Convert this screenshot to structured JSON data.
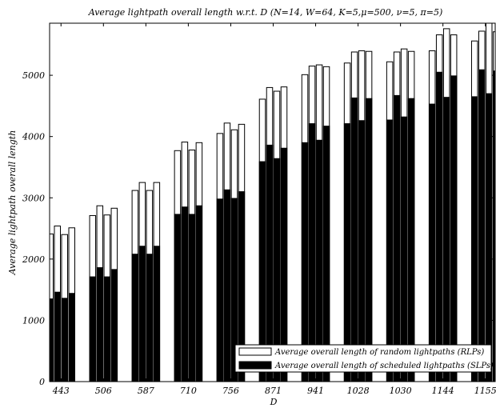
{
  "chart_data": {
    "type": "bar",
    "title": "Average lightpath overall length w.r.t. D (N=14, W=64, K=5,μ=500, ν=5, π=5)",
    "xlabel": "D",
    "ylabel": "Average lightpath overall length",
    "ylim": [
      0,
      5850
    ],
    "yticks": [
      0,
      1000,
      2000,
      3000,
      4000,
      5000
    ],
    "categories": [
      "443",
      "506",
      "587",
      "710",
      "756",
      "871",
      "941",
      "1028",
      "1030",
      "1144",
      "1155"
    ],
    "bars_per_group": 4,
    "grid": false,
    "legend_position": "bottom-right",
    "series": [
      {
        "name": "Average overall length of random lightpaths (RLPs)",
        "color": "#ffffff",
        "values": [
          [
            2410,
            2540,
            2400,
            2510
          ],
          [
            2710,
            2870,
            2720,
            2830
          ],
          [
            3120,
            3250,
            3120,
            3250
          ],
          [
            3770,
            3910,
            3780,
            3900
          ],
          [
            4050,
            4220,
            4110,
            4200
          ],
          [
            4610,
            4800,
            4740,
            4810
          ],
          [
            5010,
            5150,
            5170,
            5140
          ],
          [
            5200,
            5380,
            5400,
            5390
          ],
          [
            5220,
            5380,
            5430,
            5390
          ],
          [
            5400,
            5660,
            5760,
            5660
          ],
          [
            5560,
            5720,
            5850,
            5710
          ]
        ]
      },
      {
        "name": "Average overall length of scheduled lightpaths (SLPs)",
        "color": "#000000",
        "values": [
          [
            1350,
            1460,
            1360,
            1440
          ],
          [
            1710,
            1860,
            1710,
            1830
          ],
          [
            2080,
            2210,
            2080,
            2210
          ],
          [
            2730,
            2850,
            2730,
            2870
          ],
          [
            2980,
            3130,
            2990,
            3100
          ],
          [
            3590,
            3860,
            3640,
            3810
          ],
          [
            3900,
            4210,
            3940,
            4170
          ],
          [
            4210,
            4630,
            4260,
            4620
          ],
          [
            4270,
            4670,
            4320,
            4620
          ],
          [
            4530,
            5050,
            4640,
            4990
          ],
          [
            4650,
            5090,
            4700,
            5070
          ]
        ]
      }
    ]
  }
}
